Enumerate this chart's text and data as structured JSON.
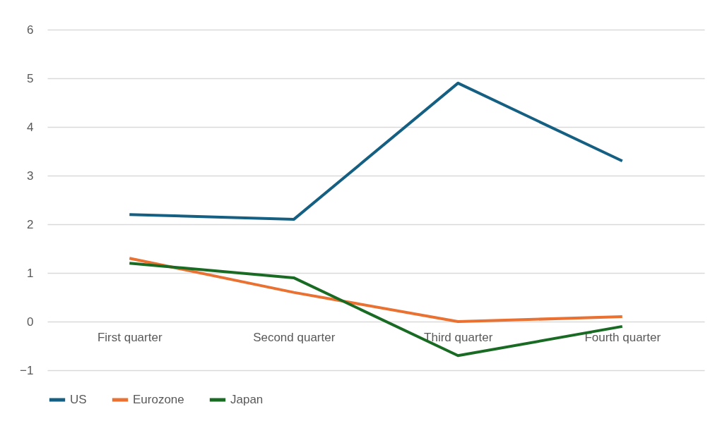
{
  "chart_data": {
    "type": "line",
    "categories": [
      "First quarter",
      "Second quarter",
      "Third quarter",
      "Fourth quarter"
    ],
    "series": [
      {
        "name": "US",
        "color": "#156082",
        "values": [
          2.2,
          2.1,
          4.9,
          3.3
        ]
      },
      {
        "name": "Eurozone",
        "color": "#e97132",
        "values": [
          1.3,
          0.6,
          0.0,
          0.1
        ]
      },
      {
        "name": "Japan",
        "color": "#196b24",
        "values": [
          1.2,
          0.9,
          -0.7,
          -0.1
        ]
      }
    ],
    "ylim": [
      -1,
      6
    ],
    "yticks": [
      -1,
      0,
      1,
      2,
      3,
      4,
      5,
      6
    ],
    "grid": "y",
    "legend": "bottom"
  }
}
